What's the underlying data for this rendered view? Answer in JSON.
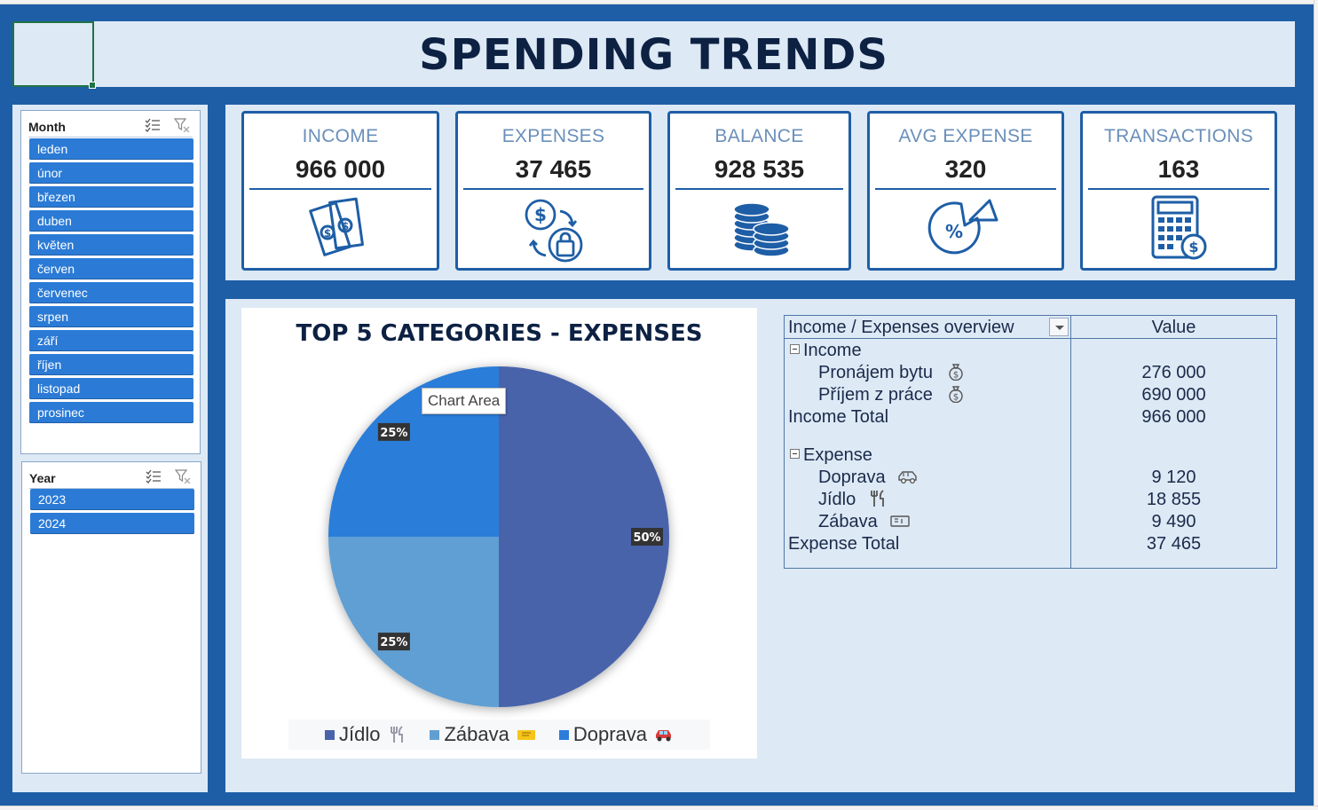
{
  "dashboard": {
    "title": "SPENDING TRENDS"
  },
  "slicers": {
    "month": {
      "title": "Month",
      "items": [
        "leden",
        "únor",
        "březen",
        "duben",
        "květen",
        "červen",
        "červenec",
        "srpen",
        "září",
        "říjen",
        "listopad",
        "prosinec"
      ]
    },
    "year": {
      "title": "Year",
      "items": [
        "2023",
        "2024"
      ]
    }
  },
  "kpis": [
    {
      "label": "INCOME",
      "value": "966 000",
      "icon": "money-bills-icon"
    },
    {
      "label": "EXPENSES",
      "value": "37 465",
      "icon": "money-exchange-icon"
    },
    {
      "label": "BALANCE",
      "value": "928 535",
      "icon": "coins-stack-icon"
    },
    {
      "label": "AVG EXPENSE",
      "value": "320",
      "icon": "percent-pie-icon"
    },
    {
      "label": "TRANSACTIONS",
      "value": "163",
      "icon": "calculator-icon"
    }
  ],
  "chart": {
    "tooltip": "Chart Area"
  },
  "chart_data": {
    "type": "pie",
    "title": "TOP 5 CATEGORIES - EXPENSES",
    "categories": [
      "Jídlo",
      "Zábava",
      "Doprava"
    ],
    "values": [
      50,
      25,
      25
    ],
    "data_labels": [
      "50%",
      "25%",
      "25%"
    ],
    "colors": [
      "#4863ab",
      "#619fd3",
      "#2b7dd9"
    ],
    "legend": "bottom",
    "legend_icons": [
      "fork-knife-icon",
      "ticket-icon",
      "car-icon"
    ]
  },
  "pivot": {
    "header_label": "Income / Expenses overview",
    "header_value": "Value",
    "income": {
      "label": "Income",
      "rows": [
        {
          "label": "Pronájem bytu",
          "value": "276 000",
          "icon": "money-bag-icon"
        },
        {
          "label": "Příjem z práce",
          "value": "690 000",
          "icon": "money-bag-icon"
        }
      ],
      "total_label": "Income Total",
      "total_value": "966 000"
    },
    "expense": {
      "label": "Expense",
      "rows": [
        {
          "label": "Doprava",
          "value": "9 120",
          "icon": "car-icon"
        },
        {
          "label": "Jídlo",
          "value": "18 855",
          "icon": "fork-knife-icon"
        },
        {
          "label": "Zábava",
          "value": "9 490",
          "icon": "ticket-icon"
        }
      ],
      "total_label": "Expense Total",
      "total_value": "37 465"
    }
  }
}
